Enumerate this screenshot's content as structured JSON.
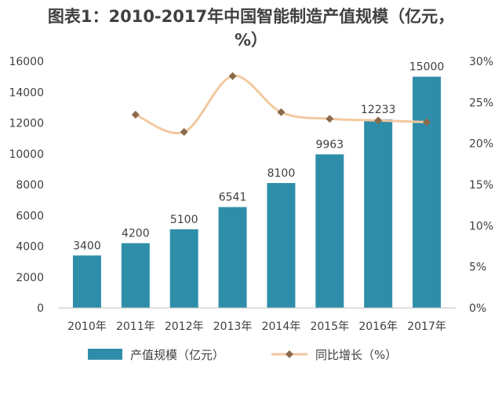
{
  "title": "图表1：2010-2017年中国智能制造产值规模（亿元，%）",
  "colors": {
    "bar": "#2e8eaa",
    "line": "#f2c9a0",
    "marker": "#8a6a4a",
    "text": "#404040"
  },
  "chart_data": {
    "type": "bar",
    "title": "图表1：2010-2017年中国智能制造产值规模（亿元，%）",
    "categories": [
      "2010年",
      "2011年",
      "2012年",
      "2013年",
      "2014年",
      "2015年",
      "2016年",
      "2017年"
    ],
    "series": [
      {
        "name": "产值规模（亿元）",
        "type": "bar",
        "axis": "left",
        "values": [
          3400,
          4200,
          5100,
          6541,
          8100,
          9963,
          12233,
          15000
        ],
        "labels": [
          "3400",
          "4200",
          "5100",
          "6541",
          "8100",
          "9963",
          "12233",
          "15000"
        ]
      },
      {
        "name": "同比增长（%）",
        "type": "line",
        "axis": "right",
        "values": [
          null,
          23.5,
          21.4,
          28.2,
          23.8,
          23.0,
          22.8,
          22.6
        ]
      }
    ],
    "ylim": [
      0,
      16000
    ],
    "yticks": [
      "0",
      "2000",
      "4000",
      "6000",
      "8000",
      "10000",
      "12000",
      "14000",
      "16000"
    ],
    "y2lim": [
      0,
      30
    ],
    "y2ticks": [
      "0%",
      "5%",
      "10%",
      "15%",
      "20%",
      "25%",
      "30%"
    ],
    "legend": {
      "position": "bottom"
    }
  }
}
